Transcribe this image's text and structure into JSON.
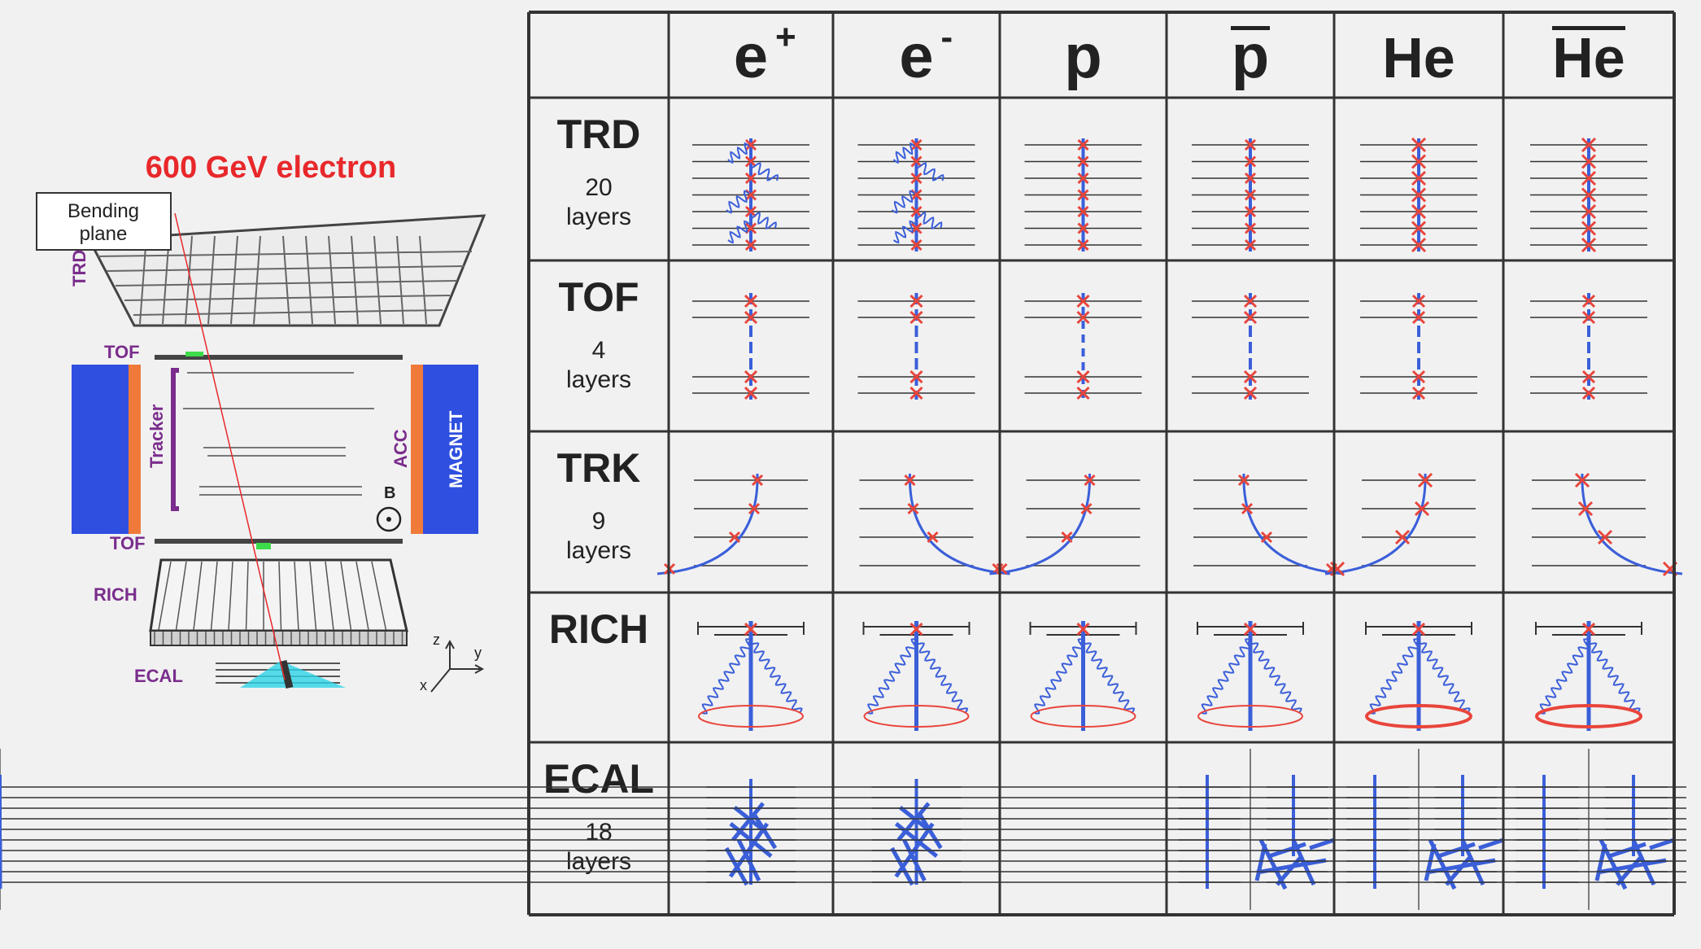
{
  "detector": {
    "title": "600 GeV electron",
    "bending_plane": [
      "Bending",
      "plane"
    ],
    "labels": {
      "trd": "TRD",
      "tof_top": "TOF",
      "tracker": "Tracker",
      "acc": "ACC",
      "magnet": "MAGNET",
      "b_field": "B",
      "tof_bottom": "TOF",
      "rich": "RICH",
      "ecal": "ECAL"
    },
    "axes": {
      "z": "z",
      "y": "y",
      "x": "x"
    }
  },
  "table": {
    "particles": [
      "e",
      "e",
      "p",
      "p",
      "He",
      "He"
    ],
    "charge_marks": [
      "+",
      "-",
      "",
      "",
      "",
      ""
    ],
    "antiparticle_bar": [
      false,
      false,
      false,
      true,
      false,
      true
    ],
    "rows": [
      {
        "name": "TRD",
        "count": "20",
        "unit": "layers"
      },
      {
        "name": "TOF",
        "count": "4",
        "unit": "layers"
      },
      {
        "name": "TRK",
        "count": "9",
        "unit": "layers"
      },
      {
        "name": "RICH",
        "count": "",
        "unit": ""
      },
      {
        "name": "ECAL",
        "count": "18",
        "unit": "layers"
      }
    ],
    "trk_curvature": [
      "left",
      "right",
      "left",
      "right",
      "left",
      "right"
    ],
    "ecal_shower": [
      "electromagnetic",
      "electromagnetic",
      "hadronic",
      "hadronic",
      "hadronic",
      "hadronic"
    ],
    "colors": {
      "hit": "#e8453c",
      "track": "#3b5fd9",
      "grid": "#333333",
      "title": "#e8282b",
      "label": "#7a2d8c",
      "magnet": "#2f4fe0",
      "acc": "#f07a3a"
    }
  }
}
